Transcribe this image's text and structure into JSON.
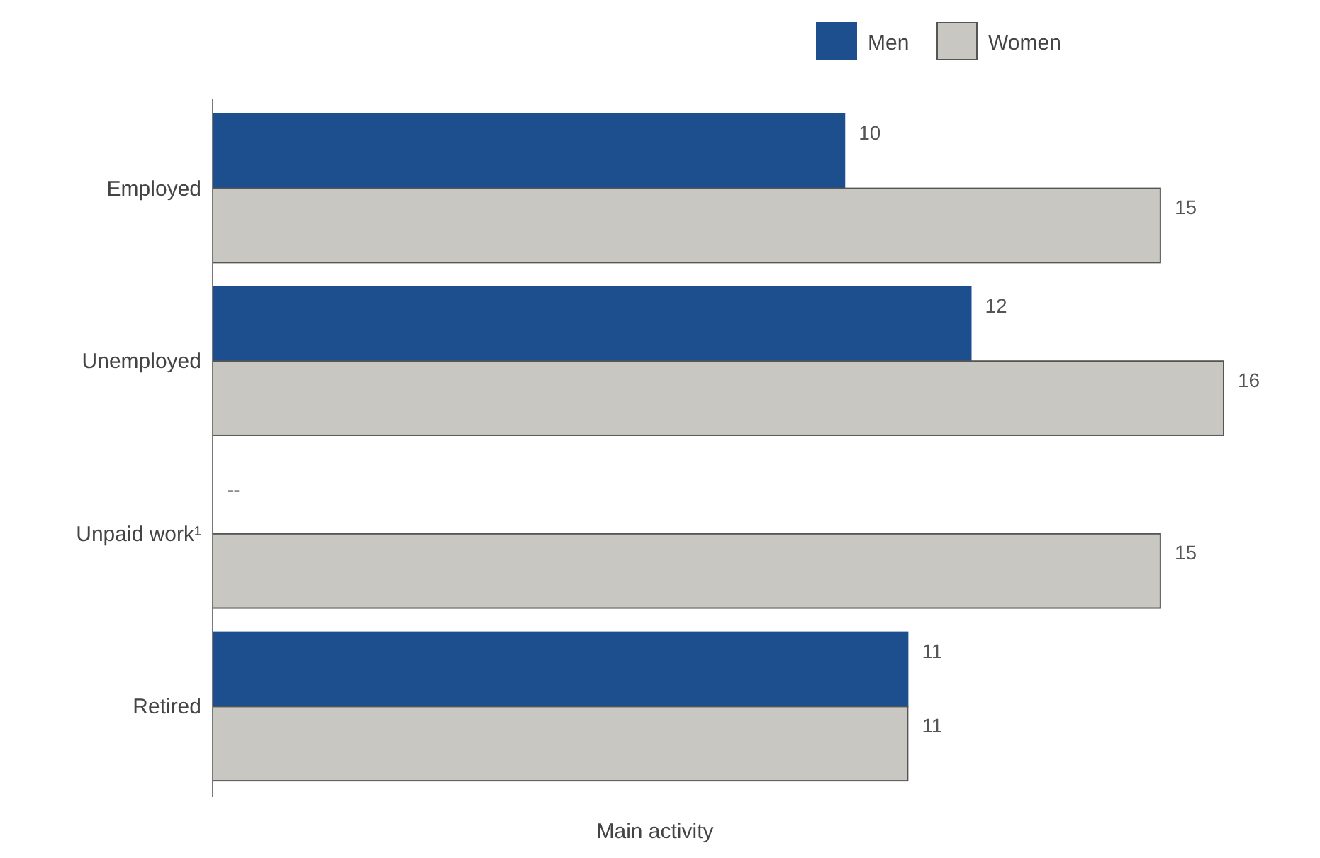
{
  "chart_data": {
    "type": "bar",
    "orientation": "horizontal",
    "xlabel": "Main activity",
    "categories": [
      "Employed",
      "Unemployed",
      "Unpaid work¹",
      "Retired"
    ],
    "series": [
      {
        "name": "Men",
        "color": "#1d4f8f",
        "values": [
          10,
          12,
          null,
          11
        ],
        "value_labels": [
          "10",
          "12",
          "--",
          "11"
        ]
      },
      {
        "name": "Women",
        "color": "#c9c7c1",
        "values": [
          15,
          16,
          15,
          11
        ],
        "value_labels": [
          "15",
          "16",
          "15",
          "11"
        ]
      }
    ],
    "tick_labels": "y",
    "legend": "top right"
  }
}
